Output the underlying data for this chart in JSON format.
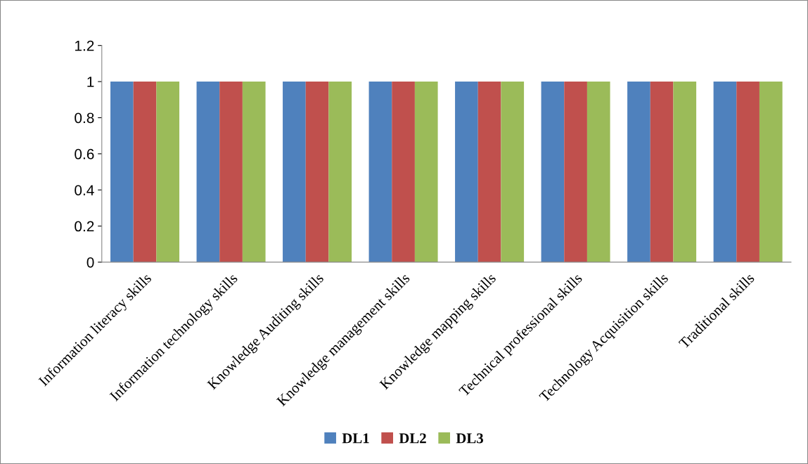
{
  "chart_data": {
    "type": "bar",
    "categories": [
      "Information literacy skills",
      "Information technology skills",
      "Knowledge Auditing skills",
      "Knowledge management skills",
      "Knowledge mapping skills",
      "Technical professional skills",
      "Technology Acquisition skills",
      "Traditional skills"
    ],
    "series": [
      {
        "name": "DL1",
        "color": "#4f81bd",
        "values": [
          1,
          1,
          1,
          1,
          1,
          1,
          1,
          1
        ]
      },
      {
        "name": "DL2",
        "color": "#c0504d",
        "values": [
          1,
          1,
          1,
          1,
          1,
          1,
          1,
          1
        ]
      },
      {
        "name": "DL3",
        "color": "#9bbb59",
        "values": [
          1,
          1,
          1,
          1,
          1,
          1,
          1,
          1
        ]
      }
    ],
    "ylim": [
      0,
      1.2
    ],
    "yticks": [
      0,
      0.2,
      0.4,
      0.6,
      0.8,
      1,
      1.2
    ],
    "grid": false,
    "legend": "bottom"
  }
}
